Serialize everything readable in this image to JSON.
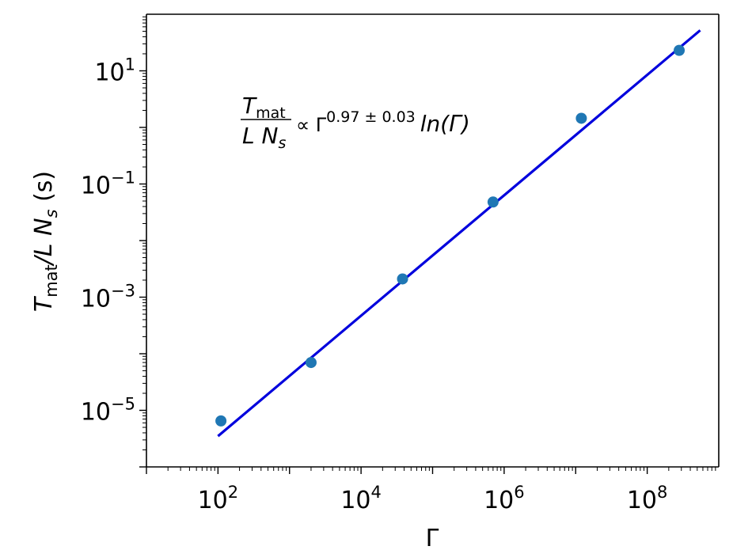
{
  "chart_data": {
    "type": "scatter",
    "scale": {
      "x": "log",
      "y": "log"
    },
    "xlabel": "Γ",
    "ylabel": {
      "main": "T",
      "sub": "mat",
      "rest": "/L N",
      "sub2": "s",
      "unit": " (s)"
    },
    "xlim": [
      10,
      1000000000
    ],
    "ylim": [
      1e-06,
      100
    ],
    "x_ticks": [
      {
        "value": 100,
        "base": "10",
        "exp": "2"
      },
      {
        "value": 10000,
        "base": "10",
        "exp": "4"
      },
      {
        "value": 1000000,
        "base": "10",
        "exp": "6"
      },
      {
        "value": 100000000,
        "base": "10",
        "exp": "8"
      }
    ],
    "y_ticks": [
      {
        "value": 10,
        "base": "10",
        "exp": "1"
      },
      {
        "value": 0.1,
        "base": "10",
        "exp": "−1"
      },
      {
        "value": 0.001,
        "base": "10",
        "exp": "−3"
      },
      {
        "value": 1e-05,
        "base": "10",
        "exp": "−5"
      }
    ],
    "points": {
      "x": [
        110,
        2000,
        38000,
        700000,
        12000000,
        280000000
      ],
      "y": [
        6.5e-06,
        7e-05,
        0.0021,
        0.048,
        1.45,
        23
      ],
      "color": "#1f77b4"
    },
    "fit_line": {
      "x": [
        100,
        550000000
      ],
      "y": [
        3.5e-06,
        52
      ],
      "color": "#0000dd"
    },
    "annotation": {
      "num_main": "T",
      "num_sub": "mat",
      "den_main": "L N",
      "den_sub": "s",
      "rel": "∝ Γ",
      "exp": "0.97 ± 0.03",
      "tail": "ln(Γ)"
    }
  }
}
